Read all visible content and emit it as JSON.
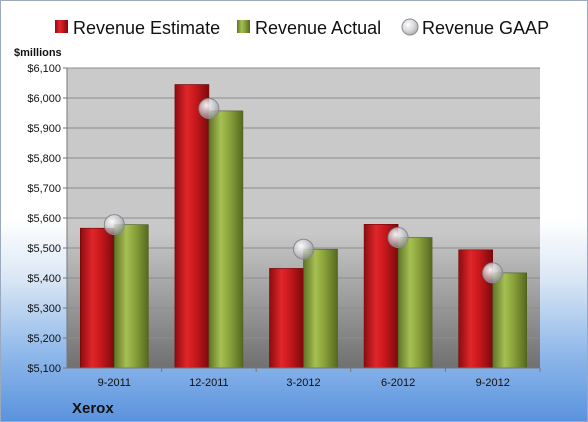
{
  "chart_data": {
    "type": "bar",
    "company": "Xerox",
    "ylabel": "$millions",
    "ylim": [
      5100,
      6100
    ],
    "yticks": [
      5100,
      5200,
      5300,
      5400,
      5500,
      5600,
      5700,
      5800,
      5900,
      6000,
      6100
    ],
    "ytick_labels": [
      "$5,100",
      "$5,200",
      "$5,300",
      "$5,400",
      "$5,500",
      "$5,600",
      "$5,700",
      "$5,800",
      "$5,900",
      "$6,000",
      "$6,100"
    ],
    "categories": [
      "9-2011",
      "12-2011",
      "3-2012",
      "6-2012",
      "9-2012"
    ],
    "series": [
      {
        "name": "Revenue Estimate",
        "type": "bar",
        "color": "#c8181c",
        "values": [
          5566,
          6045,
          5432,
          5579,
          5494
        ]
      },
      {
        "name": "Revenue Actual",
        "type": "bar",
        "color": "#8aa43c",
        "values": [
          5578,
          5957,
          5496,
          5535,
          5417
        ]
      },
      {
        "name": "Revenue GAAP",
        "type": "marker",
        "color": "#c8c8cc",
        "values": [
          5578,
          5965,
          5496,
          5535,
          5417
        ]
      }
    ],
    "grid": true,
    "legend": "top"
  }
}
